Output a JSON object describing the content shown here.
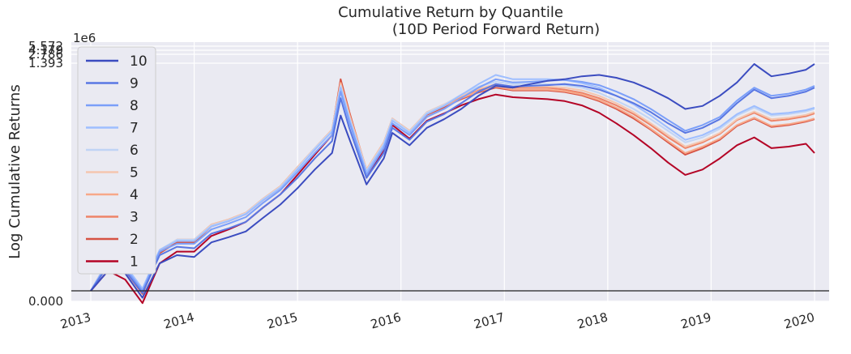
{
  "chart_data": {
    "type": "line",
    "title": "Cumulative Return by Quantile",
    "subtitle": "(10D Period Forward Return)",
    "ylabel": "Log Cumulative Returns",
    "xlabel": "",
    "y_scale": "log",
    "y_offset_text": "1e6",
    "grid": true,
    "legend_position": "top-left",
    "x_tick_labels": [
      "2013",
      "2014",
      "2015",
      "2016",
      "2017",
      "2018",
      "2019",
      "2020"
    ],
    "y_tick_labels": [
      "0.000",
      "1.393",
      "2.786",
      "4.179",
      "5.572"
    ],
    "x_range": [
      "2013-01",
      "2020-03"
    ],
    "reference_line": 1,
    "series": [
      {
        "name": "10",
        "color": "#3b4cc0",
        "x": [
          "2013-01",
          "2013-03",
          "2013-05",
          "2013-07",
          "2013-09",
          "2013-11",
          "2014-01",
          "2014-03",
          "2014-05",
          "2014-07",
          "2014-09",
          "2014-11",
          "2015-01",
          "2015-03",
          "2015-05",
          "2015-06",
          "2015-07",
          "2015-09",
          "2015-11",
          "2015-12",
          "2016-02",
          "2016-04",
          "2016-06",
          "2016-08",
          "2016-10",
          "2016-12",
          "2017-02",
          "2017-04",
          "2017-06",
          "2017-08",
          "2017-10",
          "2017-12",
          "2018-02",
          "2018-04",
          "2018-06",
          "2018-08",
          "2018-10",
          "2018-12",
          "2019-02",
          "2019-04",
          "2019-06",
          "2019-08",
          "2019-10",
          "2019-12",
          "2020-01"
        ],
        "values": [
          1.0,
          1.6,
          1.5,
          0.85,
          1.9,
          2.3,
          2.2,
          3.1,
          3.5,
          4.0,
          5.5,
          7.5,
          11,
          17,
          25,
          60,
          35,
          12,
          22,
          40,
          30,
          45,
          55,
          70,
          95,
          120,
          115,
          125,
          135,
          140,
          150,
          155,
          145,
          130,
          110,
          90,
          70,
          75,
          95,
          130,
          200,
          150,
          160,
          175,
          200
        ]
      },
      {
        "name": "9",
        "color": "#5977e3",
        "x": [
          "2013-01",
          "2013-03",
          "2013-05",
          "2013-07",
          "2013-09",
          "2013-11",
          "2014-01",
          "2014-03",
          "2014-05",
          "2014-07",
          "2014-09",
          "2014-11",
          "2015-01",
          "2015-03",
          "2015-05",
          "2015-06",
          "2015-07",
          "2015-09",
          "2015-11",
          "2015-12",
          "2016-02",
          "2016-04",
          "2016-06",
          "2016-08",
          "2016-10",
          "2016-12",
          "2017-02",
          "2017-04",
          "2017-06",
          "2017-08",
          "2017-10",
          "2017-12",
          "2018-02",
          "2018-04",
          "2018-06",
          "2018-08",
          "2018-10",
          "2018-12",
          "2019-02",
          "2019-04",
          "2019-06",
          "2019-08",
          "2019-10",
          "2019-12",
          "2020-01"
        ],
        "values": [
          1.0,
          1.8,
          1.6,
          0.95,
          2.3,
          2.8,
          2.7,
          3.8,
          4.3,
          5.0,
          7.0,
          9.5,
          14,
          22,
          33,
          90,
          45,
          14,
          25,
          45,
          34,
          52,
          62,
          80,
          105,
          125,
          118,
          120,
          122,
          125,
          120,
          110,
          95,
          80,
          65,
          50,
          40,
          45,
          55,
          80,
          110,
          90,
          95,
          105,
          115
        ]
      },
      {
        "name": "8",
        "color": "#7b9ff9",
        "x": [
          "2013-01",
          "2013-03",
          "2013-05",
          "2013-07",
          "2013-09",
          "2013-11",
          "2014-01",
          "2014-03",
          "2014-05",
          "2014-07",
          "2014-09",
          "2014-11",
          "2015-01",
          "2015-03",
          "2015-05",
          "2015-06",
          "2015-07",
          "2015-09",
          "2015-11",
          "2015-12",
          "2016-02",
          "2016-04",
          "2016-06",
          "2016-08",
          "2016-10",
          "2016-12",
          "2017-02",
          "2017-04",
          "2017-06",
          "2017-08",
          "2017-10",
          "2017-12",
          "2018-02",
          "2018-04",
          "2018-06",
          "2018-08",
          "2018-10",
          "2018-12",
          "2019-02",
          "2019-04",
          "2019-06",
          "2019-08",
          "2019-10",
          "2019-12",
          "2020-01"
        ],
        "values": [
          1.0,
          1.9,
          1.7,
          1.0,
          2.5,
          3.0,
          3.0,
          4.2,
          4.8,
          5.6,
          7.8,
          10.5,
          16,
          25,
          38,
          105,
          52,
          15,
          28,
          50,
          38,
          58,
          70,
          90,
          115,
          140,
          130,
          132,
          135,
          138,
          132,
          122,
          105,
          88,
          70,
          54,
          42,
          48,
          58,
          85,
          115,
          95,
          100,
          110,
          120
        ]
      },
      {
        "name": "7",
        "color": "#9ebeff",
        "x": [
          "2013-01",
          "2013-03",
          "2013-05",
          "2013-07",
          "2013-09",
          "2013-11",
          "2014-01",
          "2014-03",
          "2014-05",
          "2014-07",
          "2014-09",
          "2014-11",
          "2015-01",
          "2015-03",
          "2015-05",
          "2015-06",
          "2015-07",
          "2015-09",
          "2015-11",
          "2015-12",
          "2016-02",
          "2016-04",
          "2016-06",
          "2016-08",
          "2016-10",
          "2016-12",
          "2017-02",
          "2017-04",
          "2017-06",
          "2017-08",
          "2017-10",
          "2017-12",
          "2018-02",
          "2018-04",
          "2018-06",
          "2018-08",
          "2018-10",
          "2018-12",
          "2019-02",
          "2019-04",
          "2019-06",
          "2019-08",
          "2019-10",
          "2019-12",
          "2020-01"
        ],
        "values": [
          1.0,
          2.0,
          1.8,
          1.05,
          2.6,
          3.2,
          3.2,
          4.5,
          5.1,
          6.0,
          8.3,
          11,
          17,
          27,
          41,
          115,
          56,
          16,
          30,
          53,
          40,
          62,
          75,
          97,
          125,
          155,
          140,
          140,
          140,
          138,
          128,
          115,
          95,
          78,
          60,
          45,
          34,
          38,
          46,
          62,
          75,
          62,
          64,
          68,
          72
        ]
      },
      {
        "name": "6",
        "color": "#c0d4f5",
        "x": [
          "2013-01",
          "2013-03",
          "2013-05",
          "2013-07",
          "2013-09",
          "2013-11",
          "2014-01",
          "2014-03",
          "2014-05",
          "2014-07",
          "2014-09",
          "2014-11",
          "2015-01",
          "2015-03",
          "2015-05",
          "2015-06",
          "2015-07",
          "2015-09",
          "2015-11",
          "2015-12",
          "2016-02",
          "2016-04",
          "2016-06",
          "2016-08",
          "2016-10",
          "2016-12",
          "2017-02",
          "2017-04",
          "2017-06",
          "2017-08",
          "2017-10",
          "2017-12",
          "2018-02",
          "2018-04",
          "2018-06",
          "2018-08",
          "2018-10",
          "2018-12",
          "2019-02",
          "2019-04",
          "2019-06",
          "2019-08",
          "2019-10",
          "2019-12",
          "2020-01"
        ],
        "values": [
          1.0,
          2.0,
          1.8,
          1.05,
          2.6,
          3.3,
          3.3,
          4.6,
          5.2,
          6.1,
          8.5,
          11.3,
          17.5,
          28,
          42,
          120,
          58,
          16.5,
          31,
          55,
          41,
          64,
          77,
          98,
          118,
          132,
          125,
          125,
          125,
          122,
          115,
          102,
          85,
          70,
          55,
          42,
          32,
          36,
          44,
          60,
          72,
          60,
          62,
          66,
          70
        ]
      },
      {
        "name": "5",
        "color": "#f4c6af",
        "x": [
          "2013-01",
          "2013-03",
          "2013-05",
          "2013-07",
          "2013-09",
          "2013-11",
          "2014-01",
          "2014-03",
          "2014-05",
          "2014-07",
          "2014-09",
          "2014-11",
          "2015-01",
          "2015-03",
          "2015-05",
          "2015-06",
          "2015-07",
          "2015-09",
          "2015-11",
          "2015-12",
          "2016-02",
          "2016-04",
          "2016-06",
          "2016-08",
          "2016-10",
          "2016-12",
          "2017-02",
          "2017-04",
          "2017-06",
          "2017-08",
          "2017-10",
          "2017-12",
          "2018-02",
          "2018-04",
          "2018-06",
          "2018-08",
          "2018-10",
          "2018-12",
          "2019-02",
          "2019-04",
          "2019-06",
          "2019-08",
          "2019-10",
          "2019-12",
          "2020-01"
        ],
        "values": [
          1.0,
          2.0,
          1.8,
          1.0,
          2.6,
          3.3,
          3.3,
          4.7,
          5.3,
          6.2,
          8.6,
          11.5,
          18,
          28,
          43,
          125,
          60,
          17,
          32,
          56,
          42,
          65,
          78,
          95,
          112,
          125,
          118,
          118,
          118,
          115,
          108,
          95,
          80,
          65,
          50,
          38,
          29,
          33,
          40,
          55,
          66,
          55,
          57,
          61,
          65
        ]
      },
      {
        "name": "4",
        "color": "#f7a889",
        "x": [
          "2013-01",
          "2013-03",
          "2013-05",
          "2013-07",
          "2013-09",
          "2013-11",
          "2014-01",
          "2014-03",
          "2014-05",
          "2014-07",
          "2014-09",
          "2014-11",
          "2015-01",
          "2015-03",
          "2015-05",
          "2015-06",
          "2015-07",
          "2015-09",
          "2015-11",
          "2015-12",
          "2016-02",
          "2016-04",
          "2016-06",
          "2016-08",
          "2016-10",
          "2016-12",
          "2017-02",
          "2017-04",
          "2017-06",
          "2017-08",
          "2017-10",
          "2017-12",
          "2018-02",
          "2018-04",
          "2018-06",
          "2018-08",
          "2018-10",
          "2018-12",
          "2019-02",
          "2019-04",
          "2019-06",
          "2019-08",
          "2019-10",
          "2019-12",
          "2020-01"
        ],
        "values": [
          1.0,
          2.0,
          1.7,
          0.98,
          2.5,
          3.3,
          3.3,
          4.7,
          5.3,
          6.2,
          8.6,
          11.5,
          18,
          28,
          43,
          128,
          62,
          17,
          32,
          55,
          41,
          63,
          75,
          90,
          105,
          118,
          110,
          110,
          110,
          106,
          98,
          86,
          72,
          58,
          44,
          33,
          25,
          29,
          35,
          48,
          57,
          47,
          49,
          53,
          56
        ]
      },
      {
        "name": "3",
        "color": "#ee8468",
        "x": [
          "2013-01",
          "2013-03",
          "2013-05",
          "2013-07",
          "2013-09",
          "2013-11",
          "2014-01",
          "2014-03",
          "2014-05",
          "2014-07",
          "2014-09",
          "2014-11",
          "2015-01",
          "2015-03",
          "2015-05",
          "2015-06",
          "2015-07",
          "2015-09",
          "2015-11",
          "2015-12",
          "2016-02",
          "2016-04",
          "2016-06",
          "2016-08",
          "2016-10",
          "2016-12",
          "2017-02",
          "2017-04",
          "2017-06",
          "2017-08",
          "2017-10",
          "2017-12",
          "2018-02",
          "2018-04",
          "2018-06",
          "2018-08",
          "2018-10",
          "2018-12",
          "2019-02",
          "2019-04",
          "2019-06",
          "2019-08",
          "2019-10",
          "2019-12",
          "2020-01"
        ],
        "values": [
          1.0,
          2.0,
          1.7,
          0.97,
          2.5,
          3.3,
          3.3,
          4.7,
          5.3,
          6.2,
          8.6,
          11.5,
          18,
          28,
          43,
          130,
          63,
          17,
          32,
          56,
          42,
          64,
          77,
          93,
          110,
          122,
          115,
          115,
          115,
          110,
          102,
          90,
          76,
          62,
          48,
          36,
          28,
          32,
          39,
          54,
          64,
          53,
          55,
          59,
          63
        ]
      },
      {
        "name": "2",
        "color": "#d65244",
        "x": [
          "2013-01",
          "2013-03",
          "2013-05",
          "2013-07",
          "2013-09",
          "2013-11",
          "2014-01",
          "2014-03",
          "2014-05",
          "2014-07",
          "2014-09",
          "2014-11",
          "2015-01",
          "2015-03",
          "2015-05",
          "2015-06",
          "2015-07",
          "2015-09",
          "2015-11",
          "2015-12",
          "2016-02",
          "2016-04",
          "2016-06",
          "2016-08",
          "2016-10",
          "2016-12",
          "2017-02",
          "2017-04",
          "2017-06",
          "2017-08",
          "2017-10",
          "2017-12",
          "2018-02",
          "2018-04",
          "2018-06",
          "2018-08",
          "2018-10",
          "2018-12",
          "2019-02",
          "2019-04",
          "2019-06",
          "2019-08",
          "2019-10",
          "2019-12",
          "2020-01"
        ],
        "values": [
          1.0,
          1.9,
          1.6,
          0.93,
          2.4,
          3.1,
          3.1,
          4.5,
          5.1,
          6.0,
          8.3,
          11,
          17.5,
          27,
          42,
          140,
          66,
          16.5,
          31,
          54,
          40,
          61,
          73,
          88,
          103,
          115,
          108,
          108,
          108,
          104,
          96,
          84,
          70,
          56,
          43,
          32,
          24,
          28,
          34,
          47,
          56,
          46,
          48,
          52,
          55
        ]
      },
      {
        "name": "1",
        "color": "#b40426",
        "x": [
          "2013-01",
          "2013-03",
          "2013-05",
          "2013-07",
          "2013-09",
          "2013-11",
          "2014-01",
          "2014-03",
          "2014-05",
          "2014-07",
          "2014-09",
          "2014-11",
          "2015-01",
          "2015-03",
          "2015-05",
          "2015-06",
          "2015-07",
          "2015-09",
          "2015-11",
          "2015-12",
          "2016-02",
          "2016-04",
          "2016-06",
          "2016-08",
          "2016-10",
          "2016-12",
          "2017-02",
          "2017-04",
          "2017-06",
          "2017-08",
          "2017-10",
          "2017-12",
          "2018-02",
          "2018-04",
          "2018-06",
          "2018-08",
          "2018-10",
          "2018-12",
          "2019-02",
          "2019-04",
          "2019-06",
          "2019-08",
          "2019-10",
          "2019-12",
          "2020-01"
        ],
        "values": [
          1.0,
          1.6,
          1.3,
          0.75,
          1.9,
          2.5,
          2.5,
          3.6,
          4.2,
          5.0,
          7.0,
          9.5,
          15,
          24,
          38,
          125,
          58,
          14,
          27,
          48,
          35,
          53,
          63,
          76,
          88,
          98,
          92,
          90,
          88,
          84,
          76,
          64,
          50,
          38,
          28,
          20,
          15,
          17,
          22,
          30,
          36,
          28,
          29,
          31,
          25
        ]
      }
    ]
  }
}
